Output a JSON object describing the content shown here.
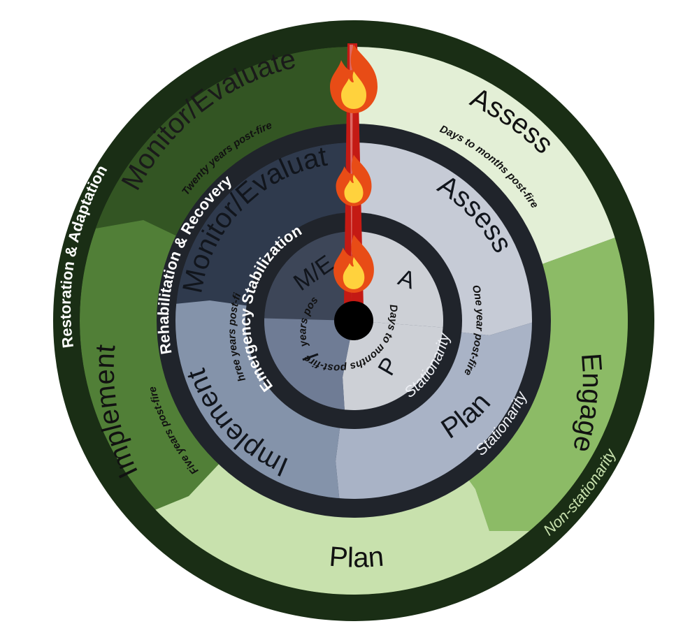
{
  "colors": {
    "outer_ring": "#1a2e15",
    "restoration_dark_segment": "#335523",
    "restoration_mid_segment": "#517f37",
    "restoration_engage_segment": "#8cbb66",
    "restoration_light_segment": "#c8e1ad",
    "restoration_assess_segment": "#e3efd6",
    "middle_ring": "#20242b",
    "rehab_dark_segment": "#2f3a4d",
    "rehab_mid_segment": "#8493aa",
    "rehab_plan_segment": "#a9b3c6",
    "rehab_assess_segment": "#c6cbd6",
    "inner_ring": "#20242b",
    "emergency_dark_segment": "#3d4658",
    "emergency_mid_segment": "#6f7c95",
    "emergency_light_segment": "#cdd0d6",
    "hand": "#c41a14",
    "flame_outer": "#e84c16",
    "flame_inner": "#ffd23d",
    "hub": "#000000"
  },
  "icons": [
    "flame-icon",
    "hub-pin-icon"
  ],
  "restoration": {
    "title": "Restoration & Adaptation",
    "assess": "Assess",
    "assess_time": "Days to months post-fire",
    "engage": "Engage",
    "plan": "Plan",
    "implement": "Implement",
    "implement_time": "Five years post-fire",
    "monitor": "Monitor/Evaluate",
    "monitor_time": "Twenty years post-fire",
    "regime": "Non-stationarity"
  },
  "rehabilitation": {
    "title": "Rehabilitation & Recovery",
    "assess": "Assess",
    "assess_time": "One year post-fire",
    "plan": "Plan",
    "plan_regime": "Stationarity",
    "implement": "Implement",
    "implement_time": "Three years post-fire",
    "monitor": "Monitor/Evaluate"
  },
  "emergency": {
    "title": "Emergency Stabilization",
    "a": "A",
    "p": "P",
    "i": "I",
    "me": "M/E",
    "days_time": "Days to months post-fire",
    "implement_time": "Five years post-fire",
    "regime": "Stationarity"
  }
}
